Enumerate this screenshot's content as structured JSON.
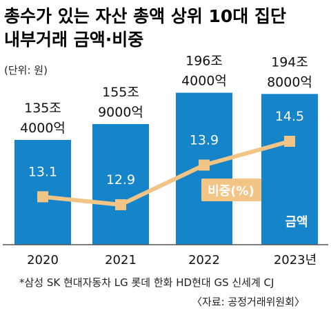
{
  "title_line1": "총수가 있는 자산 총액 상위 10대 집단",
  "title_line2": "내부거래 금액·비중",
  "unit": "(단위: 원)",
  "footnote": "*삼성 SK 현대자동차 LG 롯데 한화 HD현대 GS 신세계 CJ",
  "source": "〈자료: 공정거래위원회〉",
  "colors": {
    "bar": "#1684c9",
    "line": "#f2c486",
    "axis": "#555555"
  },
  "chart_data": {
    "type": "bar",
    "categories": [
      "2020",
      "2021",
      "2022",
      "2023년"
    ],
    "series": [
      {
        "name": "금액",
        "values": [
          135.4,
          155.9,
          196.4,
          194.8
        ],
        "labels": [
          [
            "135조",
            "4000억"
          ],
          [
            "155조",
            "9000억"
          ],
          [
            "196조",
            "4000억"
          ],
          [
            "194조",
            "8000억"
          ]
        ]
      },
      {
        "name": "비중(%)",
        "type": "line",
        "values": [
          13.1,
          12.9,
          13.9,
          14.5
        ],
        "labels": [
          "13.1",
          "12.9",
          "13.9",
          "14.5"
        ]
      }
    ]
  }
}
